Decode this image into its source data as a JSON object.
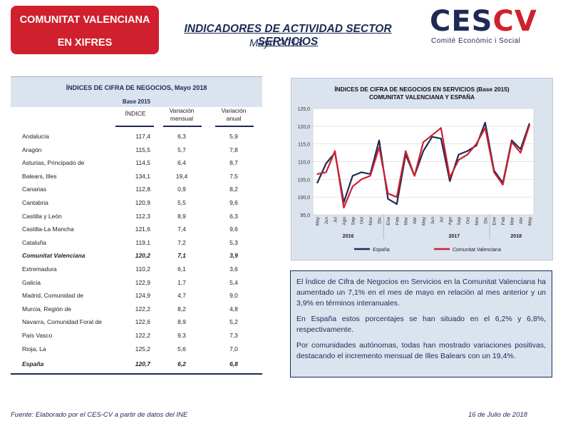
{
  "header": {
    "badge_line1": "COMUNITAT VALENCIANA",
    "badge_line2": "EN XIFRES",
    "title": "INDICADORES DE ACTIVIDAD SECTOR SERVICIOS",
    "subtitle": "Mayo 2018",
    "logo_main_a": "CES",
    "logo_main_b": "CV",
    "logo_sub": "Comité Econòmic i Social"
  },
  "colors": {
    "navy": "#1d2a55",
    "red": "#d0202e",
    "panel": "#dbe3ef"
  },
  "table": {
    "title": "ÍNDICES DE CIFRA DE NEGOCIOS, Mayo 2018",
    "base": "Base 2015",
    "col_index": "ÍNDICE",
    "col_mensual_1": "Variación",
    "col_mensual_2": "mensual",
    "col_anual_1": "Variación",
    "col_anual_2": "anual",
    "rows": [
      {
        "region": "Andalucía",
        "indice": "117,4",
        "mensual": "6,3",
        "anual": "5,9",
        "bold": false
      },
      {
        "region": "Aragón",
        "indice": "115,5",
        "mensual": "5,7",
        "anual": "7,8",
        "bold": false
      },
      {
        "region": "Asturias, Principado de",
        "indice": "114,5",
        "mensual": "6,4",
        "anual": "8,7",
        "bold": false
      },
      {
        "region": "Balears, Illes",
        "indice": "134,1",
        "mensual": "19,4",
        "anual": "7,5",
        "bold": false
      },
      {
        "region": "Canarias",
        "indice": "112,8",
        "mensual": "0,9",
        "anual": "8,2",
        "bold": false
      },
      {
        "region": "Cantabria",
        "indice": "120,9",
        "mensual": "5,5",
        "anual": "9,6",
        "bold": false
      },
      {
        "region": "Castilla y León",
        "indice": "112,3",
        "mensual": "8,9",
        "anual": "6,3",
        "bold": false
      },
      {
        "region": "Castilla-La Mancha",
        "indice": "121,6",
        "mensual": "7,4",
        "anual": "9,6",
        "bold": false
      },
      {
        "region": "Cataluña",
        "indice": "119,1",
        "mensual": "7,2",
        "anual": "5,3",
        "bold": false
      },
      {
        "region": "Comunitat Valenciana",
        "indice": "120,2",
        "mensual": "7,1",
        "anual": "3,9",
        "bold": true
      },
      {
        "region": "Extremadura",
        "indice": "110,2",
        "mensual": "6,1",
        "anual": "3,6",
        "bold": false
      },
      {
        "region": "Galicia",
        "indice": "122,9",
        "mensual": "1,7",
        "anual": "5,4",
        "bold": false
      },
      {
        "region": "Madrid, Comunidad de",
        "indice": "124,9",
        "mensual": "4,7",
        "anual": "9,0",
        "bold": false
      },
      {
        "region": "Murcia, Región de",
        "indice": "122,2",
        "mensual": "8,2",
        "anual": "4,8",
        "bold": false
      },
      {
        "region": "Navarra, Comunidad Foral de",
        "indice": "122,6",
        "mensual": "8,9",
        "anual": "5,2",
        "bold": false
      },
      {
        "region": "País Vasco",
        "indice": "122,2",
        "mensual": "9,3",
        "anual": "7,3",
        "bold": false
      },
      {
        "region": "Rioja, La",
        "indice": "125,2",
        "mensual": "5,6",
        "anual": "7,0",
        "bold": false
      },
      {
        "region": "España",
        "indice": "120,7",
        "mensual": "6,2",
        "anual": "6,8",
        "bold": true
      }
    ]
  },
  "chart_data": {
    "type": "line",
    "title": "ÍNDICES DE CIFRA DE NEGOCIOS EN SERVICIOS (Base 2015)",
    "subtitle": "COMUNITAT VALENCIANA Y ESPAÑA",
    "categories": [
      "May",
      "Jun",
      "Jul",
      "Ago",
      "Sep",
      "Oct",
      "Nov",
      "Dic",
      "Ene",
      "Feb",
      "Mar",
      "Abr",
      "May",
      "Jun",
      "Jul",
      "Ago",
      "Sep",
      "Oct",
      "Nov",
      "Dic",
      "Ene",
      "Feb",
      "Mar",
      "Abr",
      "May"
    ],
    "year_labels": [
      "2016",
      "2017",
      "2018"
    ],
    "year_centers": [
      3.5,
      15.5,
      22.5
    ],
    "ylim": [
      95,
      125
    ],
    "yticks": [
      95,
      100,
      105,
      110,
      115,
      120,
      125
    ],
    "ytick_labels": [
      "95,0",
      "100,0",
      "105,0",
      "110,0",
      "115,0",
      "120,0",
      "125,0"
    ],
    "grid": true,
    "legend_position": "bottom",
    "series": [
      {
        "name": "España",
        "color": "#1d2a55",
        "values": [
          104.0,
          109.5,
          112.5,
          98.5,
          106.0,
          107.0,
          106.5,
          116.0,
          99.5,
          98.0,
          112.0,
          106.0,
          113.0,
          117.0,
          116.5,
          104.5,
          112.0,
          113.0,
          114.5,
          121.0,
          107.5,
          104.0,
          116.0,
          113.5,
          120.7
        ]
      },
      {
        "name": "Comunitat Valenciana",
        "color": "#d0202e",
        "values": [
          106.5,
          107.0,
          113.0,
          97.0,
          103.0,
          105.0,
          106.0,
          114.0,
          101.0,
          100.0,
          113.0,
          106.0,
          115.5,
          117.5,
          119.5,
          105.5,
          110.5,
          112.0,
          115.0,
          119.5,
          107.0,
          103.5,
          115.5,
          112.5,
          120.2
        ]
      }
    ]
  },
  "text_box": {
    "p1": "El Índice de Cifra de Negocios en Servicios en la Comunitat Valenciana ha aumentado un 7,1% en el mes de mayo en relación al mes anterior y un 3,9% en términos interanuales.",
    "p2": "En España estos porcentajes se han situado en el 6,2% y 6,8%, respectivamente.",
    "p3": "Por comunidades autónomas, todas han mostrado variaciones positivas, destacando el incremento mensual de Illes Balears con un 19,4%."
  },
  "footer": {
    "source": "Fuente: Elaborado por el CES-CV a partir de datos del INE",
    "date": "16 de Julio de 2018"
  }
}
